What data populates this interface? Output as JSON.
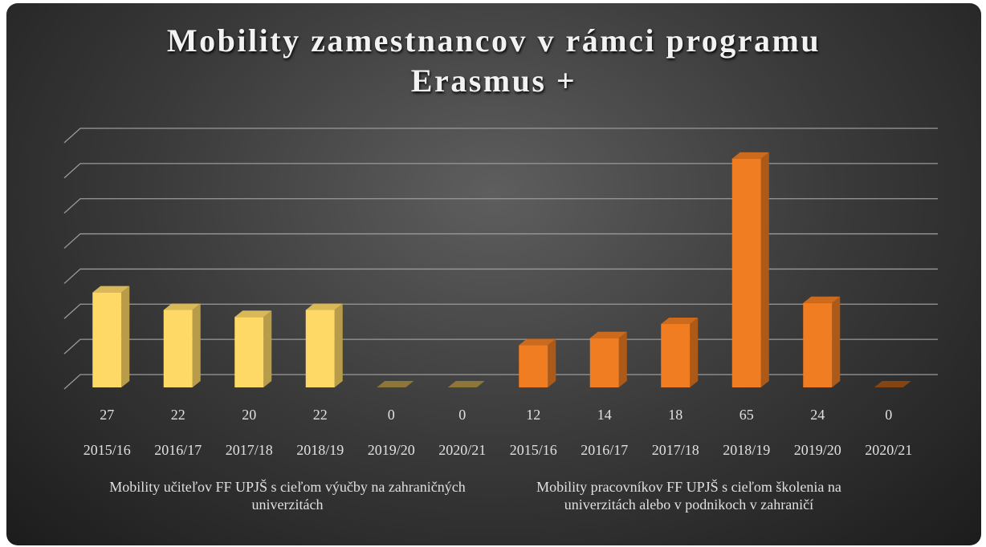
{
  "chart_data": {
    "type": "bar3d",
    "title": "Mobility zamestnancov v rámci programu Erasmus +",
    "series": [
      {
        "name": "Mobility učiteľov FF UPJŠ s cieľom výučby na zahraničných univerzitách",
        "color": "#ffd966",
        "categories": [
          "2015/16",
          "2016/17",
          "2017/18",
          "2018/19",
          "2019/20",
          "2020/21"
        ],
        "values": [
          27,
          22,
          20,
          22,
          0,
          0
        ]
      },
      {
        "name": "Mobility pracovníkov FF UPJŠ s cieľom školenia na univerzitách alebo v podnikoch v zahraničí",
        "color": "#f07d22",
        "categories": [
          "2015/16",
          "2016/17",
          "2017/18",
          "2018/19",
          "2019/20",
          "2020/21"
        ],
        "values": [
          12,
          14,
          18,
          65,
          24,
          0
        ]
      }
    ],
    "ylim": [
      0,
      70
    ],
    "yticks": [
      0,
      10,
      20,
      30,
      40,
      50,
      60,
      70
    ],
    "grid": true
  }
}
